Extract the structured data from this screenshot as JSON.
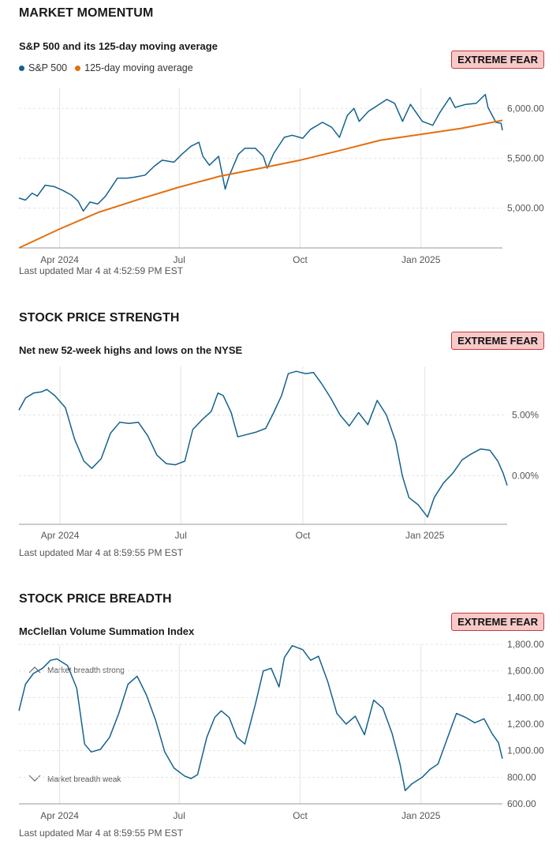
{
  "momentum": {
    "title": "MARKET MOMENTUM",
    "subtitle": "S&P 500 and its 125-day moving average",
    "badge": "EXTREME FEAR",
    "updated": "Last updated Mar 4 at 4:52:59 PM EST",
    "legend": [
      {
        "label": "S&P 500",
        "color": "#14628c"
      },
      {
        "label": "125-day moving average",
        "color": "#e36f0d"
      }
    ]
  },
  "strength": {
    "title": "STOCK PRICE STRENGTH",
    "subtitle": "Net new 52-week highs and lows on the NYSE",
    "badge": "EXTREME FEAR",
    "updated": "Last updated Mar 4 at 8:59:55 PM EST"
  },
  "breadth": {
    "title": "STOCK PRICE BREADTH",
    "subtitle": "McClellan Volume Summation Index",
    "badge": "EXTREME FEAR",
    "updated": "Last updated Mar 4 at 8:59:55 PM EST",
    "annotation_strong": "Market breadth strong",
    "annotation_weak": "Market breadth weak"
  },
  "colors": {
    "series": "#14628c",
    "ma": "#e36f0d",
    "grid": "#e3e3e3",
    "axis": "#9a9a9a",
    "tick": "#555555",
    "badge_bg": "#f8c9c9",
    "badge_border": "#c43a3a"
  },
  "chart_data": [
    {
      "id": "momentum",
      "type": "line",
      "x_type": "date",
      "x_range": [
        "2024-03-01",
        "2025-03-04"
      ],
      "x_ticks": [
        {
          "date": "2024-04-01",
          "label": "Apr 2024"
        },
        {
          "date": "2024-07-01",
          "label": "Jul"
        },
        {
          "date": "2024-10-01",
          "label": "Oct"
        },
        {
          "date": "2025-01-01",
          "label": "Jan 2025"
        }
      ],
      "y_ticks": [
        {
          "value": 5000,
          "label": "5,000.00"
        },
        {
          "value": 5500,
          "label": "5,500.00"
        },
        {
          "value": 6000,
          "label": "6,000.00"
        }
      ],
      "ylim": [
        4600,
        6200
      ],
      "grid": true,
      "legend_position": "top-left",
      "series": [
        {
          "name": "S&P 500",
          "color": "#14628c",
          "points": [
            [
              "2024-03-01",
              5100
            ],
            [
              "2024-03-06",
              5080
            ],
            [
              "2024-03-11",
              5150
            ],
            [
              "2024-03-15",
              5120
            ],
            [
              "2024-03-21",
              5230
            ],
            [
              "2024-03-28",
              5215
            ],
            [
              "2024-04-03",
              5180
            ],
            [
              "2024-04-10",
              5130
            ],
            [
              "2024-04-15",
              5070
            ],
            [
              "2024-04-19",
              4970
            ],
            [
              "2024-04-24",
              5060
            ],
            [
              "2024-04-30",
              5040
            ],
            [
              "2024-05-06",
              5120
            ],
            [
              "2024-05-15",
              5300
            ],
            [
              "2024-05-22",
              5300
            ],
            [
              "2024-05-28",
              5310
            ],
            [
              "2024-06-05",
              5330
            ],
            [
              "2024-06-12",
              5420
            ],
            [
              "2024-06-18",
              5480
            ],
            [
              "2024-06-27",
              5460
            ],
            [
              "2024-07-03",
              5540
            ],
            [
              "2024-07-10",
              5620
            ],
            [
              "2024-07-16",
              5660
            ],
            [
              "2024-07-19",
              5520
            ],
            [
              "2024-07-24",
              5430
            ],
            [
              "2024-07-31",
              5520
            ],
            [
              "2024-08-05",
              5190
            ],
            [
              "2024-08-08",
              5320
            ],
            [
              "2024-08-15",
              5540
            ],
            [
              "2024-08-20",
              5600
            ],
            [
              "2024-08-28",
              5600
            ],
            [
              "2024-09-03",
              5520
            ],
            [
              "2024-09-06",
              5400
            ],
            [
              "2024-09-11",
              5550
            ],
            [
              "2024-09-19",
              5710
            ],
            [
              "2024-09-25",
              5730
            ],
            [
              "2024-10-03",
              5700
            ],
            [
              "2024-10-09",
              5790
            ],
            [
              "2024-10-18",
              5860
            ],
            [
              "2024-10-25",
              5810
            ],
            [
              "2024-10-31",
              5710
            ],
            [
              "2024-11-06",
              5930
            ],
            [
              "2024-11-11",
              6000
            ],
            [
              "2024-11-15",
              5870
            ],
            [
              "2024-11-22",
              5970
            ],
            [
              "2024-11-29",
              6030
            ],
            [
              "2024-12-06",
              6090
            ],
            [
              "2024-12-12",
              6050
            ],
            [
              "2024-12-18",
              5870
            ],
            [
              "2024-12-24",
              6040
            ],
            [
              "2025-01-02",
              5870
            ],
            [
              "2025-01-10",
              5830
            ],
            [
              "2025-01-15",
              5950
            ],
            [
              "2025-01-23",
              6110
            ],
            [
              "2025-01-27",
              6010
            ],
            [
              "2025-02-04",
              6040
            ],
            [
              "2025-02-12",
              6050
            ],
            [
              "2025-02-19",
              6140
            ],
            [
              "2025-02-21",
              6010
            ],
            [
              "2025-02-27",
              5860
            ],
            [
              "2025-03-03",
              5850
            ],
            [
              "2025-03-04",
              5780
            ]
          ]
        },
        {
          "name": "125-day moving average",
          "color": "#e36f0d",
          "points": [
            [
              "2024-03-01",
              4600
            ],
            [
              "2024-04-01",
              4790
            ],
            [
              "2024-05-01",
              4960
            ],
            [
              "2024-06-01",
              5090
            ],
            [
              "2024-07-01",
              5210
            ],
            [
              "2024-08-01",
              5320
            ],
            [
              "2024-09-01",
              5400
            ],
            [
              "2024-10-01",
              5480
            ],
            [
              "2024-11-01",
              5580
            ],
            [
              "2024-12-01",
              5680
            ],
            [
              "2025-01-01",
              5740
            ],
            [
              "2025-02-01",
              5800
            ],
            [
              "2025-03-04",
              5880
            ]
          ]
        }
      ]
    },
    {
      "id": "strength",
      "type": "line",
      "x_type": "date",
      "x_range": [
        "2024-03-01",
        "2025-03-04"
      ],
      "x_ticks": [
        {
          "date": "2024-04-01",
          "label": "Apr 2024"
        },
        {
          "date": "2024-07-01",
          "label": "Jul"
        },
        {
          "date": "2024-10-01",
          "label": "Oct"
        },
        {
          "date": "2025-01-01",
          "label": "Jan 2025"
        }
      ],
      "y_ticks": [
        {
          "value": 0,
          "label": "0.00%"
        },
        {
          "value": 5,
          "label": "5.00%"
        }
      ],
      "ylim": [
        -4,
        9
      ],
      "grid": true,
      "series": [
        {
          "name": "",
          "color": "#14628c",
          "points": [
            [
              "2024-03-01",
              5.4
            ],
            [
              "2024-03-06",
              6.4
            ],
            [
              "2024-03-12",
              6.8
            ],
            [
              "2024-03-18",
              6.9
            ],
            [
              "2024-03-22",
              7.1
            ],
            [
              "2024-03-28",
              6.6
            ],
            [
              "2024-04-05",
              5.6
            ],
            [
              "2024-04-12",
              3.0
            ],
            [
              "2024-04-19",
              1.2
            ],
            [
              "2024-04-25",
              0.6
            ],
            [
              "2024-05-02",
              1.4
            ],
            [
              "2024-05-09",
              3.5
            ],
            [
              "2024-05-16",
              4.4
            ],
            [
              "2024-05-23",
              4.3
            ],
            [
              "2024-05-30",
              4.4
            ],
            [
              "2024-06-06",
              3.3
            ],
            [
              "2024-06-13",
              1.7
            ],
            [
              "2024-06-20",
              1.0
            ],
            [
              "2024-06-27",
              0.9
            ],
            [
              "2024-07-04",
              1.2
            ],
            [
              "2024-07-10",
              3.8
            ],
            [
              "2024-07-17",
              4.6
            ],
            [
              "2024-07-24",
              5.3
            ],
            [
              "2024-07-29",
              6.8
            ],
            [
              "2024-08-02",
              6.6
            ],
            [
              "2024-08-08",
              5.2
            ],
            [
              "2024-08-13",
              3.2
            ],
            [
              "2024-08-20",
              3.4
            ],
            [
              "2024-08-27",
              3.6
            ],
            [
              "2024-09-03",
              3.9
            ],
            [
              "2024-09-09",
              5.2
            ],
            [
              "2024-09-15",
              6.6
            ],
            [
              "2024-09-20",
              8.4
            ],
            [
              "2024-09-26",
              8.6
            ],
            [
              "2024-10-03",
              8.4
            ],
            [
              "2024-10-09",
              8.5
            ],
            [
              "2024-10-15",
              7.6
            ],
            [
              "2024-10-22",
              6.4
            ],
            [
              "2024-10-29",
              5.0
            ],
            [
              "2024-11-05",
              4.1
            ],
            [
              "2024-11-12",
              5.2
            ],
            [
              "2024-11-19",
              4.2
            ],
            [
              "2024-11-26",
              6.2
            ],
            [
              "2024-12-03",
              5.0
            ],
            [
              "2024-12-10",
              2.8
            ],
            [
              "2024-12-15",
              0.0
            ],
            [
              "2024-12-20",
              -1.8
            ],
            [
              "2024-12-27",
              -2.4
            ],
            [
              "2025-01-03",
              -3.4
            ],
            [
              "2025-01-08",
              -1.8
            ],
            [
              "2025-01-15",
              -0.6
            ],
            [
              "2025-01-22",
              0.2
            ],
            [
              "2025-01-29",
              1.3
            ],
            [
              "2025-02-05",
              1.8
            ],
            [
              "2025-02-12",
              2.2
            ],
            [
              "2025-02-19",
              2.1
            ],
            [
              "2025-02-25",
              1.2
            ],
            [
              "2025-03-01",
              0.2
            ],
            [
              "2025-03-04",
              -0.8
            ]
          ]
        }
      ]
    },
    {
      "id": "breadth",
      "type": "line",
      "x_type": "date",
      "x_range": [
        "2024-03-01",
        "2025-03-04"
      ],
      "x_ticks": [
        {
          "date": "2024-04-01",
          "label": "Apr 2024"
        },
        {
          "date": "2024-07-01",
          "label": "Jul"
        },
        {
          "date": "2024-10-01",
          "label": "Oct"
        },
        {
          "date": "2025-01-01",
          "label": "Jan 2025"
        }
      ],
      "y_ticks": [
        {
          "value": 600,
          "label": "600.00"
        },
        {
          "value": 800,
          "label": "800.00"
        },
        {
          "value": 1000,
          "label": "1,000.00"
        },
        {
          "value": 1200,
          "label": "1,200.00"
        },
        {
          "value": 1400,
          "label": "1,400.00"
        },
        {
          "value": 1600,
          "label": "1,600.00"
        },
        {
          "value": 1800,
          "label": "1,800.00"
        }
      ],
      "ylim": [
        600,
        1800
      ],
      "grid": true,
      "series": [
        {
          "name": "",
          "color": "#14628c",
          "points": [
            [
              "2024-03-01",
              1300
            ],
            [
              "2024-03-06",
              1500
            ],
            [
              "2024-03-12",
              1580
            ],
            [
              "2024-03-19",
              1620
            ],
            [
              "2024-03-25",
              1680
            ],
            [
              "2024-03-30",
              1690
            ],
            [
              "2024-04-07",
              1640
            ],
            [
              "2024-04-14",
              1470
            ],
            [
              "2024-04-20",
              1050
            ],
            [
              "2024-04-25",
              990
            ],
            [
              "2024-05-02",
              1010
            ],
            [
              "2024-05-09",
              1100
            ],
            [
              "2024-05-16",
              1280
            ],
            [
              "2024-05-23",
              1500
            ],
            [
              "2024-05-30",
              1560
            ],
            [
              "2024-06-06",
              1420
            ],
            [
              "2024-06-13",
              1230
            ],
            [
              "2024-06-20",
              990
            ],
            [
              "2024-06-27",
              870
            ],
            [
              "2024-07-05",
              810
            ],
            [
              "2024-07-10",
              790
            ],
            [
              "2024-07-15",
              820
            ],
            [
              "2024-07-22",
              1100
            ],
            [
              "2024-07-28",
              1250
            ],
            [
              "2024-08-02",
              1300
            ],
            [
              "2024-08-08",
              1250
            ],
            [
              "2024-08-14",
              1100
            ],
            [
              "2024-08-20",
              1050
            ],
            [
              "2024-08-28",
              1350
            ],
            [
              "2024-09-03",
              1600
            ],
            [
              "2024-09-09",
              1620
            ],
            [
              "2024-09-15",
              1480
            ],
            [
              "2024-09-19",
              1700
            ],
            [
              "2024-09-25",
              1790
            ],
            [
              "2024-10-03",
              1760
            ],
            [
              "2024-10-09",
              1680
            ],
            [
              "2024-10-15",
              1710
            ],
            [
              "2024-10-22",
              1520
            ],
            [
              "2024-10-29",
              1280
            ],
            [
              "2024-11-05",
              1200
            ],
            [
              "2024-11-12",
              1260
            ],
            [
              "2024-11-19",
              1120
            ],
            [
              "2024-11-26",
              1380
            ],
            [
              "2024-12-03",
              1320
            ],
            [
              "2024-12-10",
              1130
            ],
            [
              "2024-12-16",
              900
            ],
            [
              "2024-12-20",
              700
            ],
            [
              "2024-12-25",
              750
            ],
            [
              "2025-01-02",
              800
            ],
            [
              "2025-01-08",
              860
            ],
            [
              "2025-01-14",
              900
            ],
            [
              "2025-01-21",
              1090
            ],
            [
              "2025-01-28",
              1280
            ],
            [
              "2025-02-04",
              1250
            ],
            [
              "2025-02-11",
              1210
            ],
            [
              "2025-02-18",
              1240
            ],
            [
              "2025-02-24",
              1130
            ],
            [
              "2025-03-01",
              1060
            ],
            [
              "2025-03-04",
              940
            ]
          ]
        }
      ]
    }
  ]
}
